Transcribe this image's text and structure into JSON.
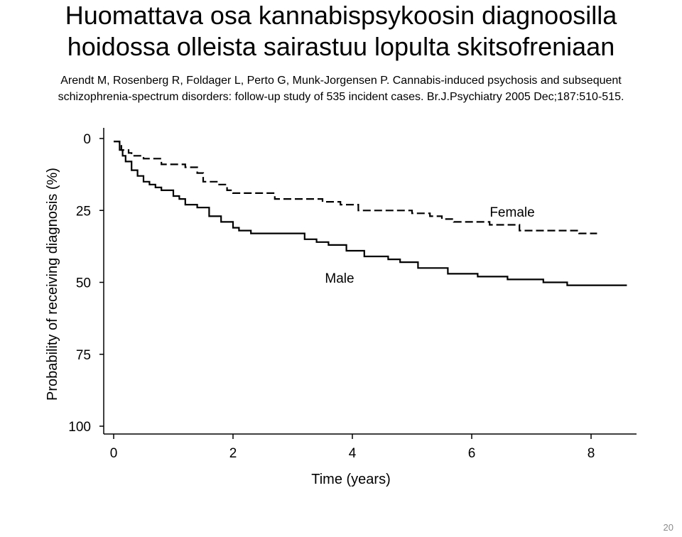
{
  "slide": {
    "title_lines": [
      "Huomattava osa kannabispsykoosin diagnoosilla",
      "hoidossa olleista sairastuu lopulta skitsofreniaan"
    ],
    "citation_lines": [
      "Arendt M, Rosenberg R, Foldager L, Perto G, Munk-Jorgensen P. Cannabis-induced psychosis and subsequent",
      "schizophrenia-spectrum disorders: follow-up study of 535 incident cases. Br.J.Psychiatry 2005 Dec;187:510-515."
    ],
    "slide_number": "20"
  },
  "chart_data": {
    "type": "line",
    "title": "",
    "xlabel": "Time (years)",
    "ylabel": "Probability of receiving diagnosis (%)",
    "xlim": [
      0,
      8.7
    ],
    "ylim": [
      0,
      100
    ],
    "y_inverted": true,
    "x_ticks": [
      0,
      2,
      4,
      6,
      8
    ],
    "y_ticks": [
      0,
      25,
      50,
      75,
      100
    ],
    "grid": false,
    "legend": "none (series labeled inline)",
    "series": [
      {
        "name": "Female",
        "style": "dashed",
        "color": "#000000",
        "x": [
          0,
          0.05,
          0.1,
          0.13,
          0.2,
          0.25,
          0.3,
          0.4,
          0.5,
          0.6,
          0.8,
          1.0,
          1.2,
          1.3,
          1.4,
          1.45,
          1.5,
          1.75,
          1.9,
          2.0,
          2.2,
          2.6,
          2.7,
          3.2,
          3.5,
          3.8,
          4.1,
          4.5,
          5.0,
          5.3,
          5.5,
          5.7,
          6.0,
          6.3,
          6.6,
          6.8,
          7.0,
          7.3,
          7.6,
          7.8,
          8.0,
          8.1
        ],
        "y": [
          1,
          1,
          2,
          4,
          4,
          5,
          6,
          6,
          7,
          7,
          9,
          9,
          10,
          10,
          12,
          12,
          15,
          16,
          18,
          19,
          19,
          19,
          21,
          21,
          22,
          23,
          25,
          25,
          26,
          27,
          28,
          29,
          29,
          30,
          30,
          32,
          32,
          32,
          32,
          33,
          33,
          33
        ]
      },
      {
        "name": "Male",
        "style": "solid",
        "color": "#000000",
        "x": [
          0,
          0.05,
          0.1,
          0.15,
          0.2,
          0.3,
          0.4,
          0.5,
          0.6,
          0.7,
          0.8,
          1.0,
          1.1,
          1.2,
          1.4,
          1.6,
          1.8,
          2.0,
          2.1,
          2.3,
          2.6,
          2.9,
          3.2,
          3.4,
          3.6,
          3.9,
          4.2,
          4.4,
          4.6,
          4.8,
          5.1,
          5.3,
          5.6,
          5.9,
          6.1,
          6.3,
          6.6,
          6.9,
          7.2,
          7.6,
          8.0,
          8.6
        ],
        "y": [
          1,
          1,
          4,
          6,
          8,
          11,
          13,
          15,
          16,
          17,
          18,
          20,
          21,
          23,
          24,
          27,
          29,
          31,
          32,
          33,
          33,
          33,
          35,
          36,
          37,
          39,
          41,
          41,
          42,
          43,
          45,
          45,
          47,
          47,
          48,
          48,
          49,
          49,
          50,
          51,
          51,
          51
        ]
      }
    ]
  }
}
